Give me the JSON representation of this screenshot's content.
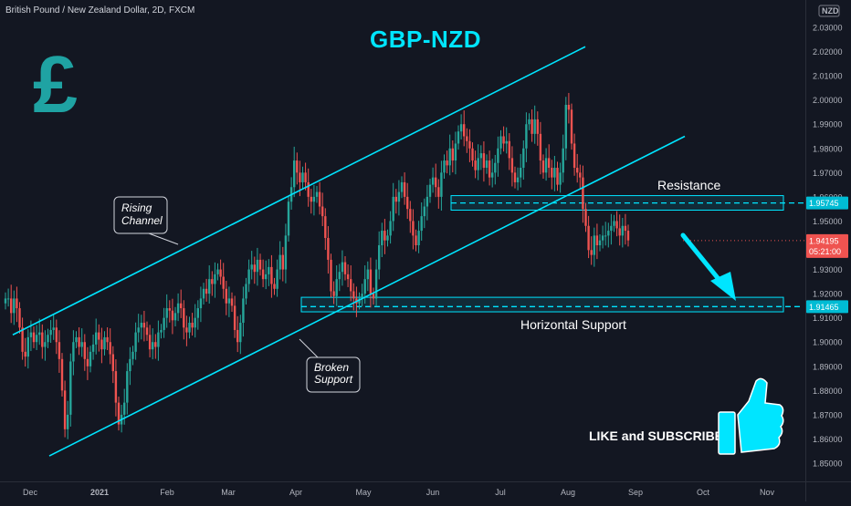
{
  "header": {
    "symbol_line": "British Pound / New Zealand Dollar, 2D, FXCM",
    "currency_label": "NZD"
  },
  "title": "GBP-NZD",
  "logo": {
    "glyph": "£",
    "color": "#1fa3a3"
  },
  "colors": {
    "background": "#131722",
    "up": "#26a69a",
    "down": "#ef5350",
    "accent": "#00e5ff",
    "axis_text": "#b2b5be"
  },
  "annotations": {
    "rising_channel": [
      "Rising",
      "Channel"
    ],
    "broken_support": [
      "Broken",
      "Support"
    ],
    "resistance": "Resistance",
    "horizontal_support": "Horizontal Support",
    "cta": "LIKE and SUBSCRIBE",
    "thumb_icon": "thumbs-up-icon"
  },
  "price_axis": {
    "ticks": [
      "2.03000",
      "2.02000",
      "2.01000",
      "2.00000",
      "1.99000",
      "1.98000",
      "1.97000",
      "1.96000",
      "1.95000",
      "1.94000",
      "1.93000",
      "1.92000",
      "1.91000",
      "1.90000",
      "1.89000",
      "1.88000",
      "1.87000",
      "1.86000",
      "1.85000"
    ],
    "top_label": "1.(hidden)",
    "resistance_tag": "1.95745",
    "current_price": "1.94195",
    "countdown": "05:21:00",
    "support_tag": "1.91465"
  },
  "time_axis": {
    "ticks": [
      "Dec",
      "2021",
      "Feb",
      "Mar",
      "Apr",
      "May",
      "Jun",
      "Jul",
      "Aug",
      "Sep",
      "Oct",
      "Nov"
    ]
  },
  "chart_data": {
    "type": "candlestick",
    "title": "GBP-NZD",
    "ylim": [
      1.8475,
      2.0375
    ],
    "price_labels": [
      "2.03000",
      "2.02000",
      "2.01000",
      "2.00000",
      "1.99000",
      "1.98000",
      "1.97000",
      "1.96000",
      "1.95000",
      "1.94000",
      "1.93000",
      "1.92000",
      "1.91000",
      "1.90000",
      "1.89000",
      "1.88000",
      "1.87000",
      "1.86000",
      "1.85000"
    ],
    "time_labels": [
      "Dec",
      "2021",
      "Feb",
      "Mar",
      "Apr",
      "May",
      "Jun",
      "Jul",
      "Aug",
      "Sep",
      "Oct",
      "Nov"
    ],
    "resistance_zone": [
      1.9545,
      1.9605
    ],
    "resistance_level": 1.95745,
    "support_zone": [
      1.9125,
      1.9185
    ],
    "support_level": 1.91465,
    "last_price": 1.94195,
    "channel_upper": {
      "from": [
        0,
        1.903
      ],
      "to": [
        236,
        2.022
      ]
    },
    "channel_lower": {
      "from": [
        15,
        1.853
      ],
      "to": [
        275,
        1.985
      ]
    },
    "ohlc_path": [
      1.918,
      1.918,
      1.912,
      1.918,
      1.914,
      1.906,
      1.896,
      1.894,
      1.902,
      1.904,
      1.9,
      1.903,
      1.904,
      1.898,
      1.9,
      1.903,
      1.905,
      1.906,
      1.9,
      1.893,
      1.88,
      1.864,
      1.87,
      1.892,
      1.9,
      1.902,
      1.898,
      1.9,
      1.893,
      1.89,
      1.896,
      1.899,
      1.904,
      1.901,
      1.897,
      1.902,
      1.9,
      1.895,
      1.888,
      1.875,
      1.866,
      1.87,
      1.875,
      1.888,
      1.893,
      1.896,
      1.904,
      1.906,
      1.908,
      1.906,
      1.903,
      1.897,
      1.9,
      1.898,
      1.904,
      1.905,
      1.91,
      1.914,
      1.913,
      1.909,
      1.912,
      1.916,
      1.914,
      1.906,
      1.904,
      1.908,
      1.906,
      1.91,
      1.914,
      1.918,
      1.922,
      1.92,
      1.926,
      1.924,
      1.928,
      1.93,
      1.927,
      1.922,
      1.916,
      1.918,
      1.915,
      1.905,
      1.9,
      1.908,
      1.918,
      1.924,
      1.93,
      1.932,
      1.929,
      1.934,
      1.93,
      1.926,
      1.928,
      1.931,
      1.924,
      1.922,
      1.93,
      1.936,
      1.93,
      1.944,
      1.958,
      1.964,
      1.975,
      1.97,
      1.966,
      1.97,
      1.966,
      1.96,
      1.958,
      1.96,
      1.962,
      1.956,
      1.952,
      1.943,
      1.934,
      1.921,
      1.919,
      1.926,
      1.929,
      1.933,
      1.928,
      1.926,
      1.921,
      1.918,
      1.916,
      1.918,
      1.92,
      1.926,
      1.93,
      1.92,
      1.918,
      1.93,
      1.94,
      1.946,
      1.942,
      1.944,
      1.95,
      1.96,
      1.958,
      1.962,
      1.966,
      1.96,
      1.955,
      1.95,
      1.944,
      1.94,
      1.946,
      1.952,
      1.956,
      1.96,
      1.965,
      1.968,
      1.964,
      1.96,
      1.97,
      1.975,
      1.973,
      1.98,
      1.975,
      1.982,
      1.987,
      1.99,
      1.985,
      1.983,
      1.98,
      1.975,
      1.971,
      1.976,
      1.978,
      1.972,
      1.975,
      1.968,
      1.97,
      1.974,
      1.98,
      1.985,
      1.982,
      1.983,
      1.976,
      1.97,
      1.966,
      1.968,
      1.972,
      1.98,
      1.99,
      1.992,
      1.986,
      1.992,
      1.986,
      1.975,
      1.97,
      1.976,
      1.972,
      1.968,
      1.972,
      1.965,
      1.97,
      1.98,
      1.998,
      1.996,
      1.982,
      1.972,
      1.97,
      1.968,
      1.955,
      1.948,
      1.938,
      1.936,
      1.944,
      1.94,
      1.942,
      1.944,
      1.944,
      1.946,
      1.948,
      1.95,
      1.947,
      1.944,
      1.948,
      1.946,
      1.942
    ]
  }
}
